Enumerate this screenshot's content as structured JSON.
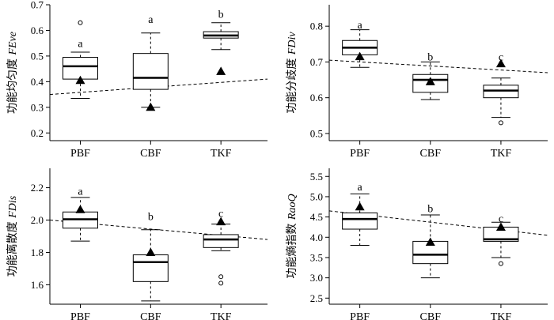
{
  "chart_data": [
    {
      "type": "box",
      "ylabel_cn": "功能均匀度",
      "ylabel_en": "FEve",
      "categories": [
        "PBF",
        "CBF",
        "TKF"
      ],
      "ylim": [
        0.17,
        0.7
      ],
      "yticks": [
        0.2,
        0.3,
        0.4,
        0.5,
        0.6,
        0.7
      ],
      "ytick_labels": [
        "0.2",
        "0.3",
        "0.4",
        "0.5",
        "0.6",
        "0.7"
      ],
      "boxes": [
        {
          "category": "PBF",
          "whisker_low": 0.335,
          "q1": 0.41,
          "median": 0.46,
          "q3": 0.495,
          "whisker_high": 0.515,
          "outliers": [
            0.63
          ],
          "mean": 0.405,
          "sig": "a",
          "sig_y": 0.55
        },
        {
          "category": "CBF",
          "whisker_low": 0.3,
          "q1": 0.37,
          "median": 0.415,
          "q3": 0.51,
          "whisker_high": 0.59,
          "outliers": [],
          "mean": 0.3,
          "sig": "a",
          "sig_y": 0.645
        },
        {
          "category": "TKF",
          "whisker_low": 0.525,
          "q1": 0.57,
          "median": 0.58,
          "q3": 0.595,
          "whisker_high": 0.63,
          "outliers": [],
          "mean": 0.44,
          "sig": "b",
          "sig_y": 0.665
        }
      ],
      "trend": {
        "y_start": 0.35,
        "y_end": 0.41
      }
    },
    {
      "type": "box",
      "ylabel_cn": "功能分歧度",
      "ylabel_en": "FDiv",
      "categories": [
        "PBF",
        "CBF",
        "TKF"
      ],
      "ylim": [
        0.48,
        0.86
      ],
      "yticks": [
        0.5,
        0.6,
        0.7,
        0.8
      ],
      "ytick_labels": [
        "0.5",
        "0.6",
        "0.7",
        "0.8"
      ],
      "boxes": [
        {
          "category": "PBF",
          "whisker_low": 0.685,
          "q1": 0.72,
          "median": 0.74,
          "q3": 0.76,
          "whisker_high": 0.79,
          "outliers": [],
          "mean": 0.715,
          "sig": "a",
          "sig_y": 0.805
        },
        {
          "category": "CBF",
          "whisker_low": 0.595,
          "q1": 0.615,
          "median": 0.65,
          "q3": 0.665,
          "whisker_high": 0.7,
          "outliers": [],
          "mean": 0.645,
          "sig": "b",
          "sig_y": 0.715
        },
        {
          "category": "TKF",
          "whisker_low": 0.545,
          "q1": 0.6,
          "median": 0.62,
          "q3": 0.635,
          "whisker_high": 0.655,
          "outliers": [
            0.53
          ],
          "mean": 0.695,
          "sig": "c",
          "sig_y": 0.715
        }
      ],
      "trend": {
        "y_start": 0.705,
        "y_end": 0.67
      }
    },
    {
      "type": "box",
      "ylabel_cn": "功能离散度",
      "ylabel_en": "FDis",
      "categories": [
        "PBF",
        "CBF",
        "TKF"
      ],
      "ylim": [
        1.48,
        2.32
      ],
      "yticks": [
        1.6,
        1.8,
        2.0,
        2.2
      ],
      "ytick_labels": [
        "1.6",
        "1.8",
        "2.0",
        "2.2"
      ],
      "boxes": [
        {
          "category": "PBF",
          "whisker_low": 1.87,
          "q1": 1.95,
          "median": 2.005,
          "q3": 2.05,
          "whisker_high": 2.14,
          "outliers": [],
          "mean": 2.065,
          "sig": "a",
          "sig_y": 2.18
        },
        {
          "category": "CBF",
          "whisker_low": 1.5,
          "q1": 1.62,
          "median": 1.74,
          "q3": 1.785,
          "whisker_high": 1.94,
          "outliers": [],
          "mean": 1.8,
          "sig": "b",
          "sig_y": 2.025
        },
        {
          "category": "TKF",
          "whisker_low": 1.81,
          "q1": 1.83,
          "median": 1.88,
          "q3": 1.91,
          "whisker_high": 1.975,
          "outliers": [
            1.65,
            1.61
          ],
          "mean": 1.99,
          "sig": "c",
          "sig_y": 2.045
        }
      ],
      "trend": {
        "y_start": 2.0,
        "y_end": 1.88
      }
    },
    {
      "type": "box",
      "ylabel_cn": "功能熵指数",
      "ylabel_en": "RaoQ",
      "categories": [
        "PBF",
        "CBF",
        "TKF"
      ],
      "ylim": [
        2.35,
        5.7
      ],
      "yticks": [
        2.5,
        3.0,
        3.5,
        4.0,
        4.5,
        5.0,
        5.5
      ],
      "ytick_labels": [
        "2.5",
        "3.0",
        "3.5",
        "4.0",
        "4.5",
        "5.0",
        "5.5"
      ],
      "boxes": [
        {
          "category": "PBF",
          "whisker_low": 3.8,
          "q1": 4.2,
          "median": 4.45,
          "q3": 4.6,
          "whisker_high": 5.07,
          "outliers": [],
          "mean": 4.75,
          "sig": "a",
          "sig_y": 5.25
        },
        {
          "category": "CBF",
          "whisker_low": 3.0,
          "q1": 3.35,
          "median": 3.57,
          "q3": 3.9,
          "whisker_high": 4.55,
          "outliers": [],
          "mean": 3.88,
          "sig": "b",
          "sig_y": 4.72
        },
        {
          "category": "TKF",
          "whisker_low": 3.5,
          "q1": 3.9,
          "median": 3.95,
          "q3": 4.25,
          "whisker_high": 4.37,
          "outliers": [
            3.35
          ],
          "mean": 4.25,
          "sig": "c",
          "sig_y": 4.47
        }
      ],
      "trend": {
        "y_start": 4.65,
        "y_end": 4.05
      }
    }
  ]
}
